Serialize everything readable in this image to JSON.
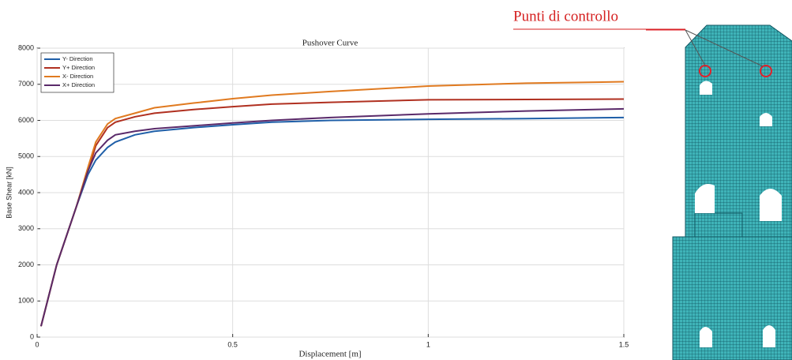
{
  "chart_data": {
    "type": "line",
    "title": "Pushover Curve",
    "x_label": "Displacement [m]",
    "y_label": "Base Shear [kN]",
    "x": [
      0.01,
      0.05,
      0.1,
      0.13,
      0.15,
      0.18,
      0.2,
      0.25,
      0.3,
      0.4,
      0.5,
      0.6,
      0.75,
      1.0,
      1.25,
      1.5
    ],
    "series": [
      {
        "name": "Y- Direction",
        "color": "#1f5fa8",
        "values": [
          300,
          2000,
          3600,
          4500,
          4900,
          5250,
          5400,
          5600,
          5700,
          5800,
          5880,
          5950,
          6000,
          6030,
          6050,
          6080
        ]
      },
      {
        "name": "Y+ Direction",
        "color": "#b03020",
        "values": [
          300,
          2000,
          3600,
          4600,
          5300,
          5800,
          5950,
          6100,
          6200,
          6300,
          6380,
          6450,
          6500,
          6570,
          6580,
          6590
        ]
      },
      {
        "name": "X- Direction",
        "color": "#e07a20",
        "values": [
          300,
          2000,
          3600,
          4700,
          5400,
          5900,
          6050,
          6200,
          6350,
          6480,
          6600,
          6700,
          6800,
          6950,
          7030,
          7070
        ]
      },
      {
        "name": "X+ Direction",
        "color": "#5a2a6a",
        "values": [
          300,
          2000,
          3600,
          4600,
          5100,
          5450,
          5600,
          5700,
          5770,
          5850,
          5930,
          6000,
          6080,
          6180,
          6260,
          6320
        ]
      }
    ],
    "xlim": [
      0,
      1.5
    ],
    "xticks": [
      0,
      0.5,
      1,
      1.5
    ],
    "ylim": [
      0,
      8000
    ],
    "yticks": [
      0,
      1000,
      2000,
      3000,
      4000,
      5000,
      6000,
      7000,
      8000
    ],
    "grid": true,
    "legend": "upper-left"
  },
  "figure": {
    "annotation": "Punti di controllo"
  }
}
